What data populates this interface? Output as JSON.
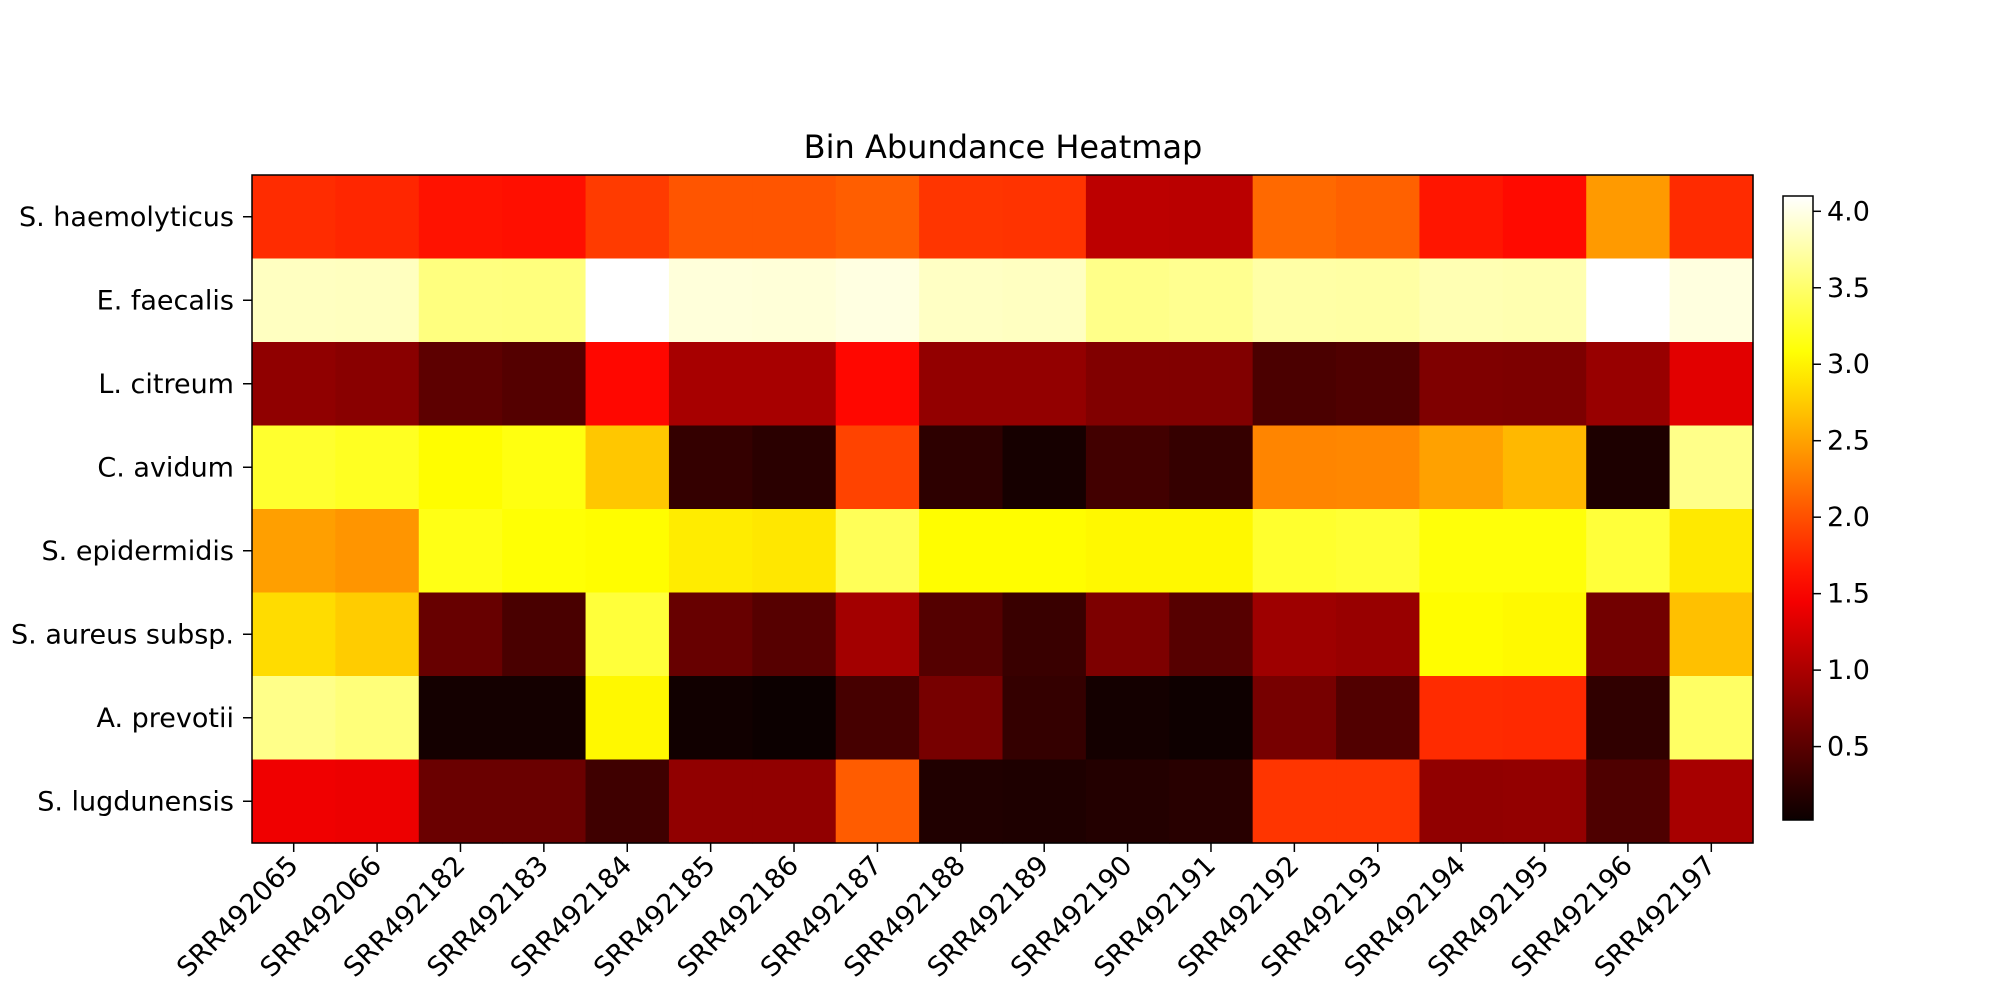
{
  "chart_data": {
    "type": "heatmap",
    "title": "Bin Abundance Heatmap",
    "xlabel": "",
    "ylabel": "",
    "colormap": "hot",
    "colorbar": {
      "range": [
        0.02,
        4.1
      ],
      "ticks": [
        "0.5",
        "1.0",
        "1.5",
        "2.0",
        "2.5",
        "3.0",
        "3.5",
        "4.0"
      ]
    },
    "x": [
      "SRR492065",
      "SRR492066",
      "SRR492182",
      "SRR492183",
      "SRR492184",
      "SRR492185",
      "SRR492186",
      "SRR492187",
      "SRR492188",
      "SRR492189",
      "SRR492190",
      "SRR492191",
      "SRR492192",
      "SRR492193",
      "SRR492194",
      "SRR492195",
      "SRR492196",
      "SRR492197"
    ],
    "y": [
      "S. haemolyticus",
      "E. faecalis",
      "L. citreum",
      "C. avidum",
      "S. epidermidis",
      "S. aureus subsp.",
      "A. prevotii",
      "S. lugdunensis"
    ],
    "values": [
      [
        1.78,
        1.74,
        1.62,
        1.6,
        1.87,
        2.03,
        2.03,
        2.08,
        1.83,
        1.82,
        1.1,
        1.09,
        2.15,
        2.1,
        1.64,
        1.57,
        2.45,
        1.77
      ],
      [
        3.85,
        3.84,
        3.58,
        3.57,
        4.1,
        3.95,
        3.94,
        3.98,
        3.86,
        3.85,
        3.62,
        3.65,
        3.74,
        3.73,
        3.79,
        3.78,
        4.1,
        3.97
      ],
      [
        0.83,
        0.79,
        0.52,
        0.47,
        1.55,
        0.97,
        0.97,
        1.55,
        0.85,
        0.85,
        0.74,
        0.74,
        0.41,
        0.44,
        0.73,
        0.72,
        0.88,
        1.33
      ],
      [
        3.25,
        3.2,
        3.05,
        3.13,
        2.72,
        0.27,
        0.21,
        1.92,
        0.23,
        0.09,
        0.36,
        0.28,
        2.32,
        2.33,
        2.49,
        2.63,
        0.13,
        3.62
      ],
      [
        2.48,
        2.42,
        3.15,
        3.08,
        3.05,
        2.95,
        2.92,
        3.42,
        3.05,
        3.05,
        3.02,
        3.02,
        3.25,
        3.28,
        3.1,
        3.1,
        3.3,
        2.93
      ],
      [
        2.85,
        2.75,
        0.58,
        0.4,
        3.3,
        0.58,
        0.48,
        0.95,
        0.47,
        0.3,
        0.72,
        0.48,
        0.92,
        0.88,
        3.05,
        3.03,
        0.65,
        2.68
      ],
      [
        3.62,
        3.56,
        0.08,
        0.08,
        3.02,
        0.06,
        0.03,
        0.38,
        0.68,
        0.27,
        0.08,
        0.04,
        0.68,
        0.45,
        1.77,
        1.76,
        0.25,
        3.47
      ],
      [
        1.42,
        1.4,
        0.6,
        0.6,
        0.34,
        0.84,
        0.84,
        2.07,
        0.15,
        0.14,
        0.17,
        0.2,
        1.83,
        1.83,
        0.84,
        0.85,
        0.43,
        0.97
      ]
    ]
  }
}
